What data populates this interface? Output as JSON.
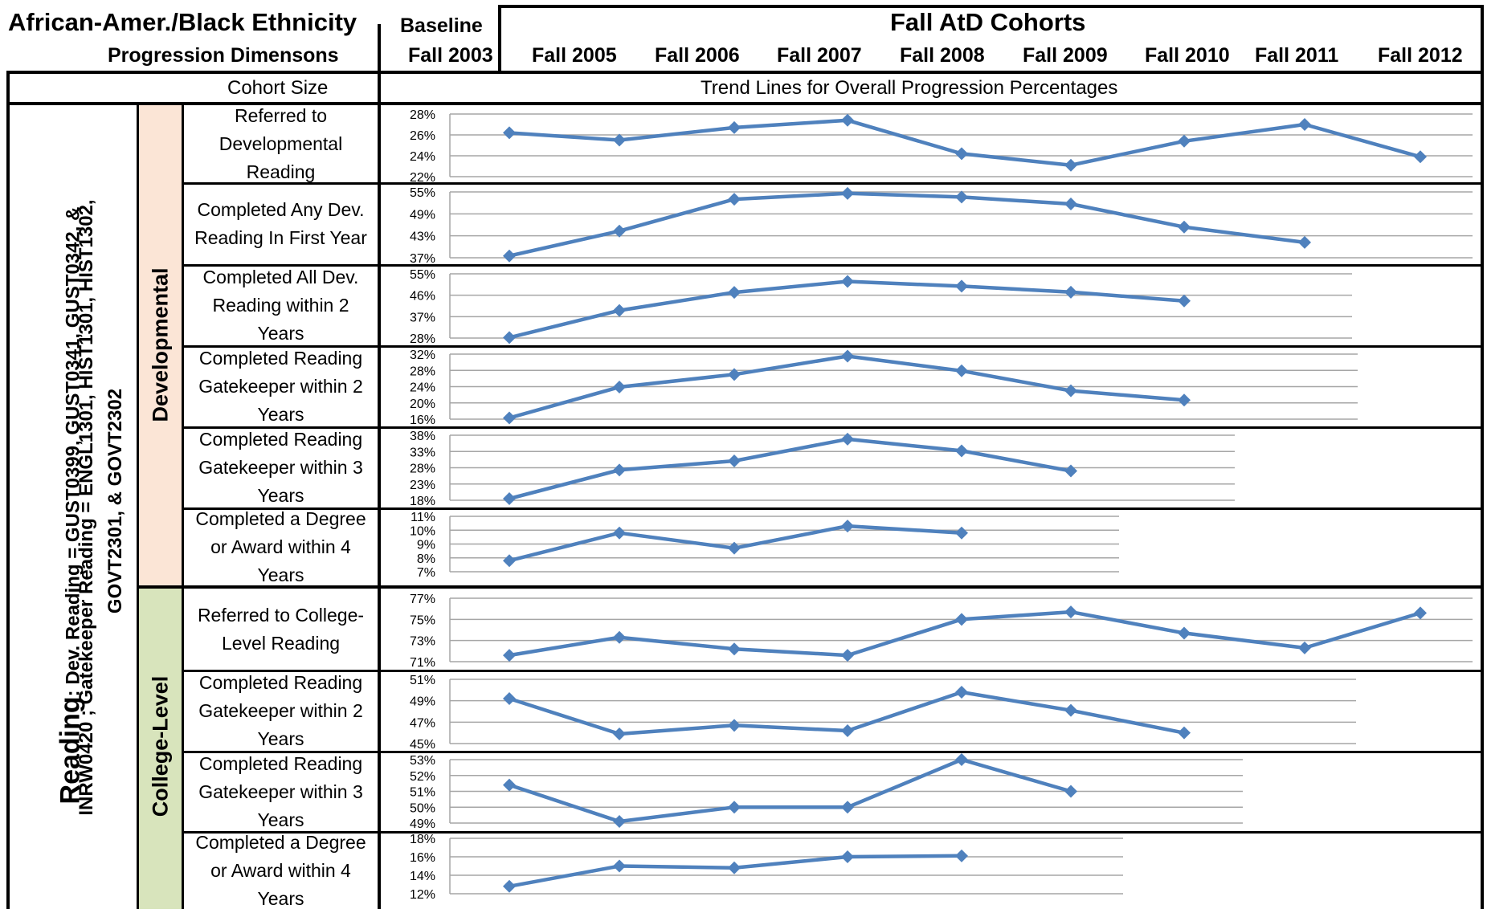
{
  "header": {
    "title": "African-Amer./Black Ethnicity",
    "subtitle": "Progression Dimensons",
    "baseline_label": "Baseline",
    "baseline_year": "Fall 2003",
    "cohorts_title": "Fall AtD Cohorts",
    "cohort_years": [
      "Fall 2005",
      "Fall 2006",
      "Fall 2007",
      "Fall 2008",
      "Fall 2009",
      "Fall 2010",
      "Fall 2011",
      "Fall 2012"
    ],
    "cohort_size_label": "Cohort Size",
    "trend_label": "Trend Lines for Overall Progression Percentages"
  },
  "side": {
    "reading_word": "Reading",
    "reading_rest": ":  Dev. Reading = GUST0399, GUST0341, GUST0342, &",
    "line2": "INRW0420 ; Gatekeeper Reading  =  ENGL1301, HIST1301, HIST1302,",
    "line3": "GOVT2301, & GOVT2302",
    "developmental": "Developmental",
    "college_level": "College-Level"
  },
  "row_labels": [
    "Referred to Developmental Reading",
    "Completed Any Dev. Reading In First Year",
    "Completed All Dev. Reading within 2 Years",
    "Completed Reading Gatekeeper within 2 Years",
    "Completed Reading Gatekeeper within 3 Years",
    "Completed a Degree or Award within 4 Years",
    "Referred to College-Level Reading",
    "Completed Reading Gatekeeper within 2 Years",
    "Completed Reading Gatekeeper within 3 Years",
    "Completed a Degree or Award within 4 Years"
  ],
  "colors": {
    "line": "#4F81BD",
    "grid": "#A6A6A6",
    "dev_bg": "#FBE5D6",
    "college_bg": "#D8E4BC"
  },
  "chart_data": [
    {
      "type": "line",
      "x": [
        "Fall 2003",
        "Fall 2005",
        "Fall 2006",
        "Fall 2007",
        "Fall 2008",
        "Fall 2009",
        "Fall 2010",
        "Fall 2011",
        "Fall 2012"
      ],
      "values": [
        26.2,
        25.5,
        26.7,
        27.4,
        24.2,
        23.1,
        25.4,
        27.0,
        23.9
      ],
      "ylim": [
        22,
        28
      ],
      "ticks": [
        "28%",
        "26%",
        "24%",
        "22%"
      ]
    },
    {
      "type": "line",
      "x": [
        "Fall 2003",
        "Fall 2005",
        "Fall 2006",
        "Fall 2007",
        "Fall 2008",
        "Fall 2009",
        "Fall 2010",
        "Fall 2011"
      ],
      "values": [
        37.5,
        44.3,
        53.0,
        54.6,
        53.6,
        51.7,
        45.4,
        41.2
      ],
      "ylim": [
        37,
        55
      ],
      "ticks": [
        "55%",
        "49%",
        "43%",
        "37%"
      ]
    },
    {
      "type": "line",
      "x": [
        "Fall 2003",
        "Fall 2005",
        "Fall 2006",
        "Fall 2007",
        "Fall 2008",
        "Fall 2009",
        "Fall 2010"
      ],
      "values": [
        28.2,
        39.6,
        47.2,
        51.8,
        49.8,
        47.3,
        43.6
      ],
      "ylim": [
        28,
        55
      ],
      "ticks": [
        "55%",
        "46%",
        "37%",
        "28%"
      ]
    },
    {
      "type": "line",
      "x": [
        "Fall 2003",
        "Fall 2005",
        "Fall 2006",
        "Fall 2007",
        "Fall 2008",
        "Fall 2009",
        "Fall 2010"
      ],
      "values": [
        16.3,
        23.9,
        27.0,
        31.5,
        27.9,
        23.0,
        20.7
      ],
      "ylim": [
        16,
        32
      ],
      "ticks": [
        "32%",
        "28%",
        "24%",
        "20%",
        "16%"
      ]
    },
    {
      "type": "line",
      "x": [
        "Fall 2003",
        "Fall 2005",
        "Fall 2006",
        "Fall 2007",
        "Fall 2008",
        "Fall 2009"
      ],
      "values": [
        18.5,
        27.3,
        30.1,
        36.8,
        33.2,
        27.0
      ],
      "ylim": [
        18,
        38
      ],
      "ticks": [
        "38%",
        "33%",
        "28%",
        "23%",
        "18%"
      ]
    },
    {
      "type": "line",
      "x": [
        "Fall 2003",
        "Fall 2005",
        "Fall 2006",
        "Fall 2007",
        "Fall 2008"
      ],
      "values": [
        7.8,
        9.8,
        8.7,
        10.3,
        9.8
      ],
      "ylim": [
        7,
        11
      ],
      "ticks": [
        "11%",
        "10%",
        "9%",
        "8%",
        "7%"
      ]
    },
    {
      "type": "line",
      "x": [
        "Fall 2003",
        "Fall 2005",
        "Fall 2006",
        "Fall 2007",
        "Fall 2008",
        "Fall 2009",
        "Fall 2010",
        "Fall 2011",
        "Fall 2012"
      ],
      "values": [
        71.6,
        73.3,
        72.2,
        71.6,
        75.0,
        75.7,
        73.7,
        72.3,
        75.6
      ],
      "ylim": [
        71,
        77
      ],
      "ticks": [
        "77%",
        "75%",
        "73%",
        "71%"
      ]
    },
    {
      "type": "line",
      "x": [
        "Fall 2003",
        "Fall 2005",
        "Fall 2006",
        "Fall 2007",
        "Fall 2008",
        "Fall 2009",
        "Fall 2010"
      ],
      "values": [
        49.2,
        45.9,
        46.7,
        46.2,
        49.8,
        48.1,
        46.0
      ],
      "ylim": [
        45,
        51
      ],
      "ticks": [
        "51%",
        "49%",
        "47%",
        "45%"
      ]
    },
    {
      "type": "line",
      "x": [
        "Fall 2003",
        "Fall 2005",
        "Fall 2006",
        "Fall 2007",
        "Fall 2008",
        "Fall 2009"
      ],
      "values": [
        51.4,
        49.1,
        50.0,
        50.0,
        53.0,
        51.0
      ],
      "ylim": [
        49,
        53
      ],
      "ticks": [
        "53%",
        "52%",
        "51%",
        "50%",
        "49%"
      ]
    },
    {
      "type": "line",
      "x": [
        "Fall 2003",
        "Fall 2005",
        "Fall 2006",
        "Fall 2007",
        "Fall 2008"
      ],
      "values": [
        12.8,
        15.0,
        14.8,
        16.0,
        16.1
      ],
      "ylim": [
        12,
        18
      ],
      "ticks": [
        "18%",
        "16%",
        "14%",
        "12%"
      ]
    }
  ]
}
